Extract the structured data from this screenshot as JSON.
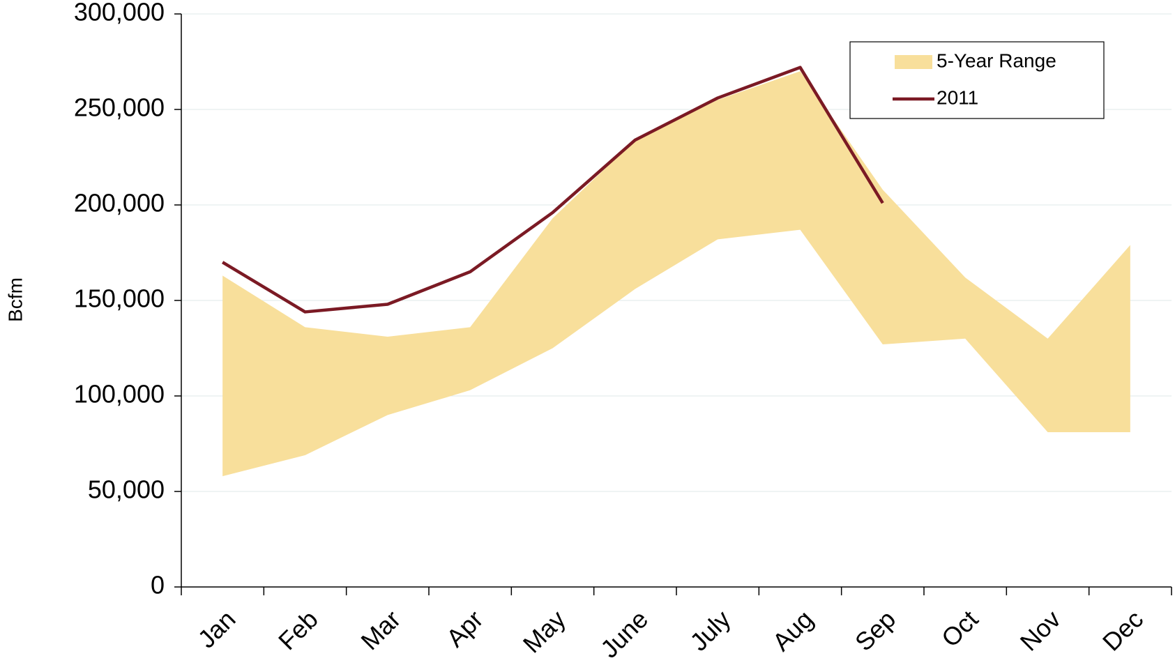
{
  "chart_data": {
    "type": "line",
    "y_label": "Bcfm",
    "categories": [
      "Jan",
      "Feb",
      "Mar",
      "Apr",
      "May",
      "June",
      "July",
      "Aug",
      "Sep",
      "Oct",
      "Nov",
      "Dec"
    ],
    "series": [
      {
        "name": "5-Year Range",
        "type": "range",
        "color": "#f8df9b",
        "low": [
          58000,
          69000,
          90000,
          103000,
          125000,
          156000,
          182000,
          187000,
          127000,
          130000,
          81000,
          81000
        ],
        "high": [
          163000,
          136000,
          131000,
          136000,
          193000,
          234000,
          255000,
          270000,
          208000,
          162000,
          130000,
          179000
        ]
      },
      {
        "name": "2011",
        "type": "line",
        "color": "#7b1a24",
        "values": [
          170000,
          144000,
          148000,
          165000,
          196000,
          234000,
          256000,
          272000,
          201000,
          null,
          null,
          null
        ]
      }
    ],
    "ylim": [
      0,
      300000
    ],
    "yticks": [
      0,
      {
        "value": 50000,
        "label": "50,000"
      },
      {
        "value": 100000,
        "label": "100,000"
      },
      {
        "value": 150000,
        "label": "150,000"
      },
      {
        "value": 200000,
        "label": "200,000"
      },
      {
        "value": 250000,
        "label": "250,000"
      },
      {
        "value": 300000,
        "label": "300,000"
      }
    ],
    "grid": true,
    "legend": "top-right"
  }
}
